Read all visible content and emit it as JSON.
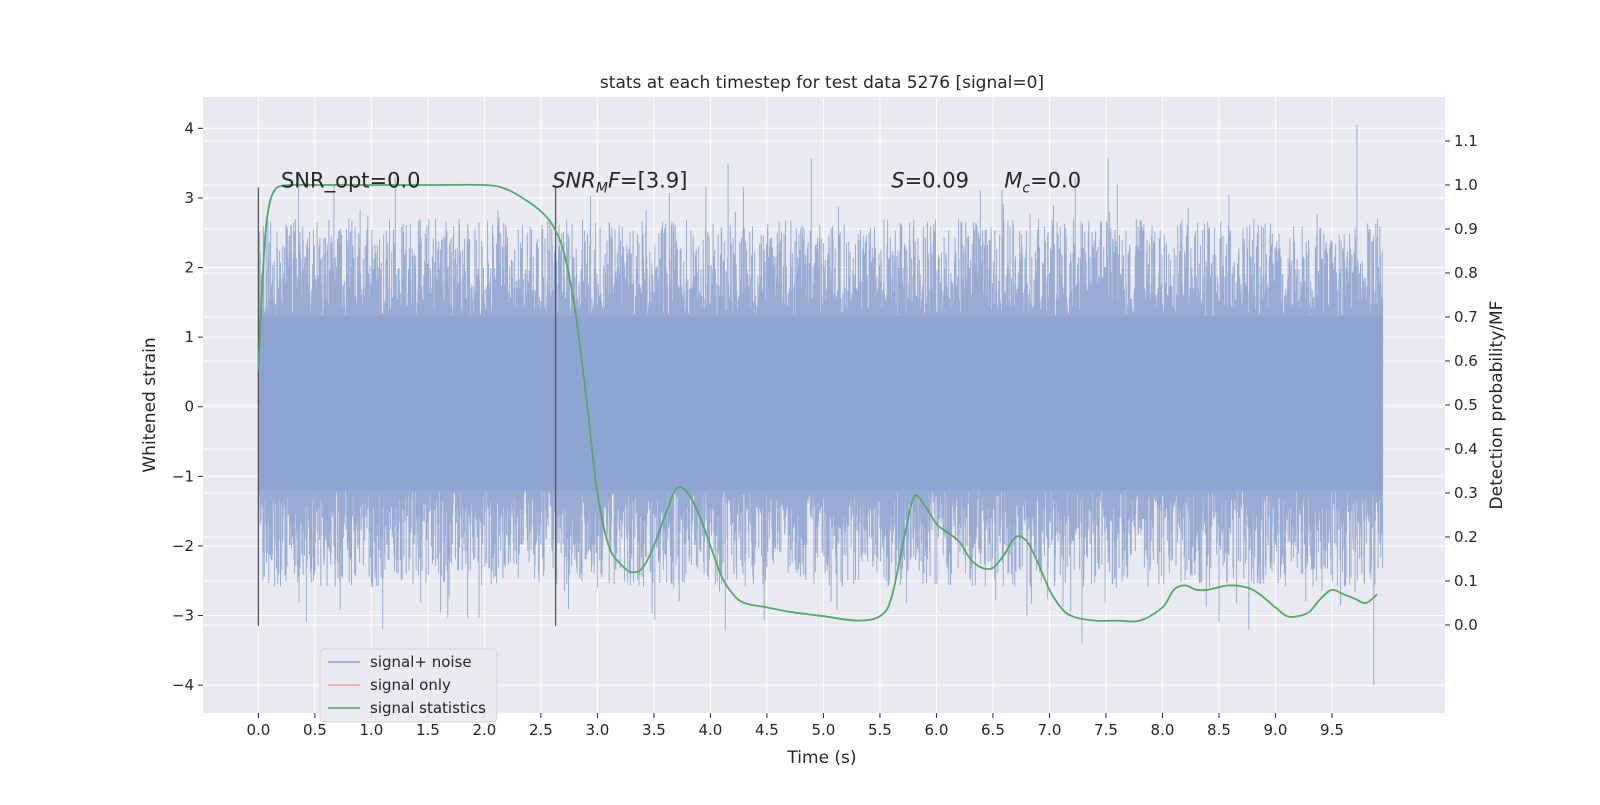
{
  "chart_data": {
    "type": "line",
    "title": "stats at each timestep for test data 5276 [signal=0]",
    "xlabel": "Time (s)",
    "ylabel_left": "Whitened strain",
    "ylabel_right": "Detection probability/MF",
    "xlim": [
      -0.49,
      10.5
    ],
    "ylim_left": [
      -4.4,
      4.45
    ],
    "ylim_right": [
      -0.2,
      1.2
    ],
    "x_ticks": [
      "0.0",
      "0.5",
      "1.0",
      "1.5",
      "2.0",
      "2.5",
      "3.0",
      "3.5",
      "4.0",
      "4.5",
      "5.0",
      "5.5",
      "6.0",
      "6.5",
      "7.0",
      "7.5",
      "8.0",
      "8.5",
      "9.0",
      "9.5"
    ],
    "y_ticks_left": [
      "4",
      "3",
      "2",
      "1",
      "0",
      "−1",
      "−2",
      "−3",
      "−4"
    ],
    "y_ticks_right": [
      "1.1",
      "1.0",
      "0.9",
      "0.8",
      "0.7",
      "0.6",
      "0.5",
      "0.4",
      "0.3",
      "0.2",
      "0.1",
      "0.0"
    ],
    "grid": true,
    "legend_position": "lower-left",
    "series": [
      {
        "name": "signal+ noise",
        "axis": "left",
        "color": "#8fa5d0",
        "description_stats": {
          "core_band": [
            -1.2,
            1.3
          ],
          "typical_extent": [
            -2.5,
            2.6
          ],
          "peak_max": 4.05,
          "peak_min": -4.0
        }
      },
      {
        "name": "signal only",
        "axis": "left",
        "color": "#e8a58c",
        "x": [],
        "y": []
      },
      {
        "name": "signal statistics",
        "axis": "right",
        "color": "#55a868",
        "x": [
          0.0,
          0.04,
          0.08,
          0.15,
          0.3,
          0.5,
          1.0,
          1.5,
          2.0,
          2.2,
          2.4,
          2.5,
          2.6,
          2.7,
          2.8,
          2.9,
          3.0,
          3.1,
          3.2,
          3.3,
          3.4,
          3.5,
          3.6,
          3.7,
          3.8,
          3.9,
          4.0,
          4.1,
          4.2,
          4.3,
          4.5,
          4.7,
          5.0,
          5.3,
          5.5,
          5.6,
          5.7,
          5.8,
          5.9,
          6.0,
          6.1,
          6.2,
          6.3,
          6.4,
          6.5,
          6.6,
          6.7,
          6.8,
          6.9,
          7.0,
          7.1,
          7.2,
          7.4,
          7.6,
          7.8,
          8.0,
          8.1,
          8.2,
          8.3,
          8.4,
          8.6,
          8.8,
          9.0,
          9.1,
          9.2,
          9.3,
          9.4,
          9.5,
          9.6,
          9.7,
          9.8,
          9.9
        ],
        "y": [
          0.58,
          0.8,
          0.93,
          0.99,
          1.0,
          1.0,
          1.0,
          1.0,
          1.0,
          0.99,
          0.96,
          0.94,
          0.91,
          0.85,
          0.72,
          0.52,
          0.3,
          0.18,
          0.14,
          0.12,
          0.13,
          0.18,
          0.25,
          0.31,
          0.3,
          0.25,
          0.18,
          0.11,
          0.07,
          0.05,
          0.04,
          0.03,
          0.02,
          0.01,
          0.02,
          0.06,
          0.18,
          0.29,
          0.27,
          0.23,
          0.21,
          0.19,
          0.15,
          0.13,
          0.13,
          0.16,
          0.2,
          0.19,
          0.14,
          0.08,
          0.04,
          0.02,
          0.01,
          0.01,
          0.01,
          0.04,
          0.08,
          0.09,
          0.08,
          0.08,
          0.09,
          0.08,
          0.04,
          0.02,
          0.02,
          0.03,
          0.06,
          0.08,
          0.07,
          0.06,
          0.05,
          0.07
        ]
      }
    ],
    "markers": [
      {
        "x": 0.0,
        "y_left_range": [
          -3.15,
          3.15
        ]
      },
      {
        "x": 2.63,
        "y_left_range": [
          -3.15,
          3.15
        ]
      }
    ],
    "annotations": [
      {
        "id": "snr_opt",
        "x": 0.2,
        "y_left": 3.15,
        "text": "SNR_opt=0.0"
      },
      {
        "id": "snr_mf",
        "x": 2.6,
        "y_left": 3.15,
        "text": "SNR",
        "sub": "M",
        "rest": "F=[3.9]"
      },
      {
        "id": "s",
        "x": 5.6,
        "y_left": 3.15,
        "text": "S",
        "rest": "=0.09"
      },
      {
        "id": "mc",
        "x": 6.6,
        "y_left": 3.15,
        "text": "M",
        "sub": "c",
        "rest": "=0.0"
      }
    ]
  }
}
